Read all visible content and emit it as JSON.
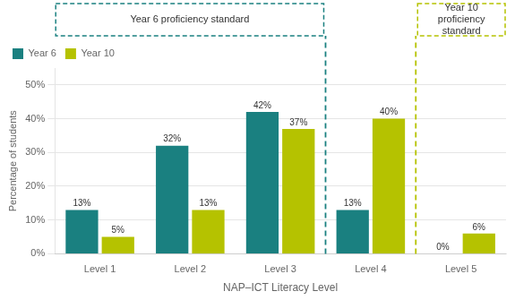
{
  "chart_data": {
    "type": "bar",
    "categories": [
      "Level 1",
      "Level 2",
      "Level 3",
      "Level 4",
      "Level 5"
    ],
    "series": [
      {
        "name": "Year 6",
        "color": "#1a8080",
        "values": [
          13,
          32,
          42,
          13,
          0
        ],
        "value_labels": [
          "13%",
          "32%",
          "42%",
          "13%",
          "0%"
        ]
      },
      {
        "name": "Year 10",
        "color": "#b5c200",
        "values": [
          5,
          13,
          37,
          40,
          6
        ],
        "value_labels": [
          "5%",
          "13%",
          "37%",
          "40%",
          "6%"
        ]
      }
    ],
    "xlabel": "NAP–ICT Literacy Level",
    "ylabel": "Percentage of students",
    "ylim": [
      0,
      55
    ],
    "yticks": [
      {
        "value": 0,
        "label": "0%"
      },
      {
        "value": 10,
        "label": "10%"
      },
      {
        "value": 20,
        "label": "20%"
      },
      {
        "value": 30,
        "label": "30%"
      },
      {
        "value": 40,
        "label": "40%"
      },
      {
        "value": 50,
        "label": "50%"
      }
    ],
    "grid": true,
    "legend": "upper left",
    "data_labels": true,
    "annotations": [
      {
        "text": "Year 6 proficiency standard",
        "x": 2.5,
        "color": "#1a8080"
      },
      {
        "text": "Year 10 proficiency standard",
        "x": 3.5,
        "color": "#b5c200"
      }
    ]
  }
}
